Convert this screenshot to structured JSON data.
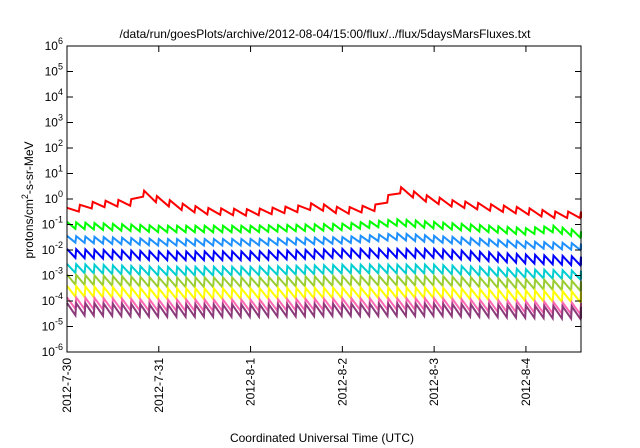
{
  "chart_data": {
    "type": "line",
    "title": "/data/run/goesPlots/archive/2012-08-04/15:00/flux/../flux/5daysMarsFluxes.txt",
    "xlabel": "Coordinated Universal Time (UTC)",
    "ylabel": "protons/cm²-s-sr-MeV",
    "ylabel_main": "protons/cm",
    "ylabel_sup": "2",
    "ylabel_rest": "-s-sr-MeV",
    "y_scale": "log",
    "ylim": [
      1e-06,
      1000000.0
    ],
    "y_tick_exponents": [
      -6,
      -5,
      -4,
      -3,
      -2,
      -1,
      0,
      1,
      2,
      3,
      4,
      5,
      6
    ],
    "y_tick_base": "10",
    "xlim": [
      "2012-07-30 00:00",
      "2012-08-04 15:00"
    ],
    "x_tick_labels": [
      "2012-7-30",
      "2012-7-31",
      "2012-8-1",
      "2012-8-2",
      "2012-8-3",
      "2012-8-4"
    ],
    "x_tick_days": [
      0,
      1,
      2,
      3,
      4,
      5
    ],
    "x_days_span": 5.6,
    "grid": false,
    "legend": "none",
    "series": [
      {
        "color": "#ff0000",
        "base": [
          [
            0,
            0.25
          ],
          [
            0.3,
            0.45
          ],
          [
            0.7,
            0.55
          ],
          [
            0.72,
            2.0
          ],
          [
            0.9,
            0.9
          ],
          [
            1.2,
            0.4
          ],
          [
            1.5,
            0.25
          ],
          [
            2.0,
            0.22
          ],
          [
            2.5,
            0.3
          ],
          [
            2.7,
            0.4
          ],
          [
            3.0,
            0.25
          ],
          [
            3.4,
            0.35
          ],
          [
            3.6,
            1.8
          ],
          [
            3.9,
            0.8
          ],
          [
            4.2,
            0.5
          ],
          [
            4.6,
            0.35
          ],
          [
            5.0,
            0.25
          ],
          [
            5.3,
            0.18
          ],
          [
            5.6,
            0.18
          ]
        ],
        "tooth": 1.8,
        "period": 0.14
      },
      {
        "color": "#00ff00",
        "base": [
          [
            0,
            0.07
          ],
          [
            1.0,
            0.05
          ],
          [
            2.0,
            0.05
          ],
          [
            3.0,
            0.06
          ],
          [
            3.6,
            0.09
          ],
          [
            4.0,
            0.07
          ],
          [
            5.0,
            0.04
          ],
          [
            5.3,
            0.05
          ],
          [
            5.6,
            0.03
          ]
        ],
        "tooth": 1.8,
        "period": 0.1
      },
      {
        "color": "#1e90ff",
        "base": [
          [
            0,
            0.02
          ],
          [
            1.0,
            0.015
          ],
          [
            2.0,
            0.015
          ],
          [
            3.0,
            0.018
          ],
          [
            3.6,
            0.025
          ],
          [
            4.0,
            0.02
          ],
          [
            5.0,
            0.012
          ],
          [
            5.6,
            0.01
          ]
        ],
        "tooth": 1.8,
        "period": 0.1
      },
      {
        "color": "#0000ff",
        "base": [
          [
            0,
            0.005
          ],
          [
            1.0,
            0.004
          ],
          [
            2.0,
            0.004
          ],
          [
            3.0,
            0.005
          ],
          [
            4.0,
            0.005
          ],
          [
            5.0,
            0.003
          ],
          [
            5.6,
            0.0025
          ]
        ],
        "tooth": 2.2,
        "period": 0.1
      },
      {
        "color": "#00ced1",
        "base": [
          [
            0,
            0.0013
          ],
          [
            1.0,
            0.001
          ],
          [
            2.0,
            0.001
          ],
          [
            3.0,
            0.0012
          ],
          [
            4.0,
            0.0012
          ],
          [
            5.0,
            0.0008
          ],
          [
            5.6,
            0.0007
          ]
        ],
        "tooth": 2.2,
        "period": 0.1
      },
      {
        "color": "#9acd32",
        "base": [
          [
            0,
            0.00045
          ],
          [
            1.0,
            0.00035
          ],
          [
            2.0,
            0.00035
          ],
          [
            3.0,
            0.0004
          ],
          [
            4.0,
            0.0004
          ],
          [
            5.0,
            0.0003
          ],
          [
            5.6,
            0.00025
          ]
        ],
        "tooth": 2.4,
        "period": 0.1
      },
      {
        "color": "#ffff00",
        "base": [
          [
            0,
            0.00015
          ],
          [
            1.0,
            0.00012
          ],
          [
            2.0,
            0.00012
          ],
          [
            3.0,
            0.00013
          ],
          [
            4.0,
            0.00013
          ],
          [
            5.0,
            0.0001
          ],
          [
            5.6,
            9e-05
          ]
        ],
        "tooth": 2.6,
        "period": 0.1
      },
      {
        "color": "#ff69b4",
        "base": [
          [
            0,
            5e-05
          ],
          [
            1.0,
            4e-05
          ],
          [
            2.0,
            4e-05
          ],
          [
            3.0,
            4.5e-05
          ],
          [
            4.0,
            4.5e-05
          ],
          [
            5.0,
            3.5e-05
          ],
          [
            5.6,
            3e-05
          ]
        ],
        "tooth": 2.8,
        "period": 0.1
      },
      {
        "color": "#8b3a7a",
        "base": [
          [
            0,
            2.8e-05
          ],
          [
            1.0,
            2.4e-05
          ],
          [
            2.0,
            2.4e-05
          ],
          [
            3.0,
            2.6e-05
          ],
          [
            4.0,
            2.6e-05
          ],
          [
            5.0,
            2.2e-05
          ],
          [
            5.6,
            2e-05
          ]
        ],
        "tooth": 3.0,
        "period": 0.1
      }
    ]
  }
}
